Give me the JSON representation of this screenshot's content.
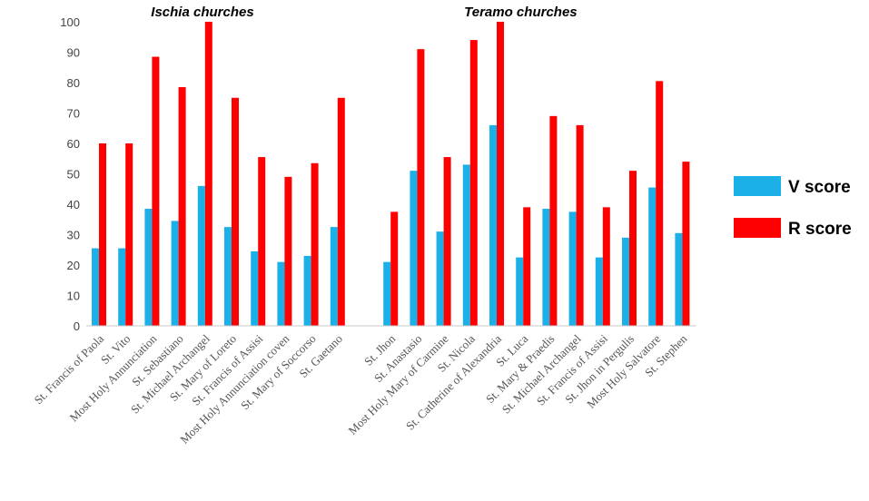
{
  "chart_data": {
    "type": "bar",
    "title": "",
    "xlabel": "",
    "ylabel": "",
    "ylim": [
      0,
      100
    ],
    "yticks": [
      0,
      10,
      20,
      30,
      40,
      50,
      60,
      70,
      80,
      90,
      100
    ],
    "grid": false,
    "legend_position": "right",
    "groups": [
      {
        "label": "Ischia churches",
        "categories": [
          "St. Francis of Paola",
          "St. Vito",
          "Most Holy Annunciation",
          "St. Sebastiano",
          "St. Michael Archangel",
          "St. Mary of Loreto",
          "St. Francis of Assisi",
          "Most Holy Annunciation coven",
          "St. Mary of Soccorso",
          "St. Gaetano"
        ]
      },
      {
        "label": "Teramo churches",
        "categories": [
          "St. Jhon",
          "St. Anastasio",
          "Most Holy Mary of Carmine",
          "St. Nicola",
          "St. Catherine of Alexandria",
          "St. Luca",
          "St. Mary & Praedis",
          "St. Michael Archangel",
          "St. Francis of Assisi",
          "St. Jhon in Pergulis",
          "Most Holy Salvatore",
          "St. Stephen"
        ]
      }
    ],
    "series": [
      {
        "name": "V score",
        "color": "#1BB0E8",
        "values": [
          25.5,
          25.5,
          38.5,
          34.5,
          46,
          32.5,
          24.5,
          21,
          23,
          32.5,
          21,
          51,
          31,
          53,
          66,
          22.5,
          38.5,
          37.5,
          22.5,
          29,
          45.5,
          30.5
        ]
      },
      {
        "name": "R score",
        "color": "#FF0000",
        "values": [
          60,
          60,
          88.5,
          78.5,
          100,
          75,
          55.5,
          49,
          53.5,
          75,
          37.5,
          91,
          55.5,
          94,
          100,
          39,
          69,
          66,
          39,
          51,
          80.5,
          54
        ]
      }
    ]
  }
}
